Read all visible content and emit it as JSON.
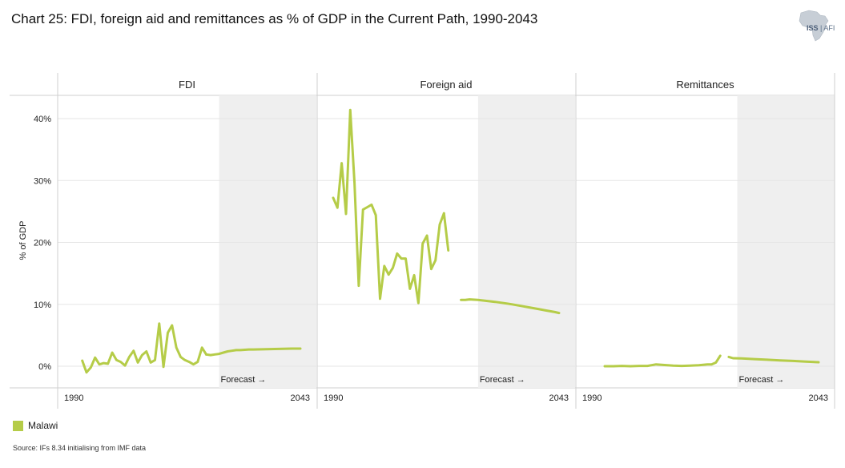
{
  "title": "Chart 25: FDI, foreign aid and remittances as % of GDP in the Current Path, 1990-2043",
  "logo": {
    "main": "ISS",
    "sub": "AFI"
  },
  "legend": {
    "label": "Malawi",
    "color": "#b5cc48"
  },
  "source": "Source: IFs 8.34 initialising from IMF data",
  "chart_data": {
    "type": "line",
    "ylabel": "% of GDP",
    "yticks": [
      "0%",
      "10%",
      "20%",
      "30%",
      "40%"
    ],
    "ylim": [
      -3,
      43
    ],
    "xlim": [
      1990,
      2043
    ],
    "forecast_start": 2024,
    "forecast_label": "Forecast →",
    "x_start_label": "1990",
    "x_end_label": "2043",
    "series_color": "#b5cc48",
    "panels": [
      {
        "name": "FDI",
        "historical": {
          "x": [
            1992,
            1993,
            1994,
            1995,
            1996,
            1997,
            1998,
            1999,
            2000,
            2001,
            2002,
            2003,
            2004,
            2005,
            2006,
            2007,
            2008,
            2009,
            2010,
            2011,
            2012,
            2013,
            2014,
            2015,
            2016,
            2017,
            2018,
            2019,
            2020,
            2021
          ],
          "y": [
            0.9,
            -1.0,
            -0.2,
            1.4,
            0.3,
            0.5,
            0.4,
            2.2,
            1.0,
            0.7,
            0.1,
            1.5,
            2.5,
            0.6,
            1.8,
            2.4,
            0.6,
            1.0,
            6.9,
            -0.1,
            5.4,
            6.6,
            3.0,
            1.5,
            1.0,
            0.7,
            0.3,
            0.7,
            3.0,
            1.9
          ]
        },
        "forecast": {
          "x": [
            2021,
            2022,
            2023,
            2024,
            2025,
            2026,
            2027,
            2028,
            2029,
            2030,
            2031,
            2032,
            2035,
            2038,
            2041,
            2043
          ],
          "y": [
            1.9,
            1.8,
            1.9,
            2.0,
            2.2,
            2.4,
            2.5,
            2.6,
            2.6,
            2.65,
            2.7,
            2.7,
            2.75,
            2.8,
            2.85,
            2.85
          ]
        }
      },
      {
        "name": "Foreign aid",
        "historical": {
          "x": [
            1990,
            1991,
            1992,
            1993,
            1994,
            1995,
            1996,
            1997,
            1998,
            1999,
            2000,
            2001,
            2002,
            2003,
            2004,
            2005,
            2006,
            2007,
            2008,
            2009,
            2010,
            2011,
            2012,
            2013,
            2014,
            2015,
            2016
          ],
          "y": [
            27.2,
            25.6,
            32.8,
            24.6,
            41.4,
            29.6,
            13.0,
            25.3,
            25.7,
            26.1,
            24.4,
            10.9,
            16.2,
            14.8,
            15.9,
            18.2,
            17.4,
            17.4,
            12.5,
            14.7,
            10.2,
            19.8,
            21.1,
            15.7,
            17.1,
            22.9,
            24.7
          ]
        },
        "historical_tail": {
          "x": [
            2016,
            2017
          ],
          "y": [
            24.7,
            18.7
          ]
        },
        "forecast": {
          "x": [
            2020,
            2021,
            2022,
            2024,
            2026,
            2028,
            2030,
            2032,
            2034,
            2036,
            2038,
            2040,
            2042,
            2043
          ],
          "y": [
            10.7,
            10.7,
            10.8,
            10.7,
            10.55,
            10.4,
            10.2,
            10.0,
            9.75,
            9.5,
            9.25,
            9.0,
            8.75,
            8.6
          ]
        }
      },
      {
        "name": "Remittances",
        "historical": {
          "x": [
            1993,
            1995,
            1997,
            1999,
            2001,
            2003,
            2005,
            2007,
            2009,
            2011,
            2013,
            2015,
            2017,
            2018,
            2019,
            2020
          ],
          "y": [
            0.0,
            0.0,
            0.05,
            0.0,
            0.05,
            0.05,
            0.3,
            0.2,
            0.1,
            0.05,
            0.1,
            0.15,
            0.3,
            0.3,
            0.6,
            1.7
          ]
        },
        "forecast": {
          "x": [
            2022,
            2023,
            2025,
            2028,
            2031,
            2034,
            2037,
            2040,
            2043
          ],
          "y": [
            1.5,
            1.3,
            1.25,
            1.15,
            1.05,
            0.95,
            0.85,
            0.75,
            0.65
          ]
        }
      }
    ]
  }
}
